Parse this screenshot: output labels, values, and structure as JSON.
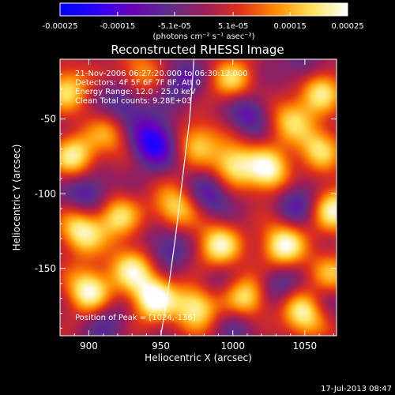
{
  "chart_data": {
    "type": "heatmap",
    "title": "Reconstructed RHESSI Image",
    "xlabel": "Heliocentric X (arcsec)",
    "ylabel": "Heliocentric Y (arcsec)",
    "xlim": [
      880,
      1072
    ],
    "ylim": [
      -195,
      -10
    ],
    "x_ticks": [
      "900",
      "950",
      "1000",
      "1050"
    ],
    "x_tick_values": [
      900,
      950,
      1000,
      1050
    ],
    "y_ticks": [
      "-50",
      "-100",
      "-150"
    ],
    "y_tick_values": [
      -50,
      -100,
      -150
    ],
    "colorbar": {
      "range": [
        -0.00025,
        0.00025
      ],
      "tick_labels": [
        "-0.00025",
        "-0.00015",
        "-5.1e-05",
        "5.1e-05",
        "0.00015",
        "0.00025"
      ],
      "tick_values": [
        -0.00025,
        -0.00015,
        -5.1e-05,
        5.1e-05,
        0.00015,
        0.00025
      ],
      "units": "(photons cm⁻² s⁻¹ asec⁻²)",
      "stops": [
        "#0000ff",
        "#2a00ff",
        "#6a00b8",
        "#5a2f8a",
        "#9a1e5a",
        "#e0301a",
        "#ff8c00",
        "#ffe25a",
        "#ffffff"
      ]
    },
    "info_lines": [
      "21-Nov-2006 06:27:20.000 to 06:30:12.000",
      "Detectors: 4F 5F 6F 7F 8F, Att 0",
      "Energy Range: 12.0 - 25.0 keV",
      "Clean      Total counts: 9.28E+03"
    ],
    "peak_label": "Position of Peak = [1024,-136]",
    "peak_position": [
      1024,
      -136
    ],
    "limb_curve": [
      [
        950,
        -195
      ],
      [
        955,
        -165
      ],
      [
        960,
        -130
      ],
      [
        965,
        -90
      ],
      [
        970,
        -50
      ],
      [
        973,
        -10
      ]
    ],
    "background_value": 5e-06,
    "sources": [
      [
        890,
        -75,
        0.0002
      ],
      [
        885,
        -30,
        0.00018
      ],
      [
        895,
        -125,
        0.00022
      ],
      [
        900,
        -165,
        0.00024
      ],
      [
        920,
        -115,
        0.00018
      ],
      [
        930,
        -150,
        0.00019
      ],
      [
        945,
        -170,
        0.00025
      ],
      [
        975,
        -175,
        0.00024
      ],
      [
        990,
        -135,
        0.00022
      ],
      [
        1000,
        -80,
        0.00021
      ],
      [
        1000,
        -25,
        0.00018
      ],
      [
        1025,
        -85,
        0.00023
      ],
      [
        1035,
        -135,
        0.00024
      ],
      [
        1050,
        -180,
        0.00024
      ],
      [
        1060,
        -30,
        0.00022
      ],
      [
        1060,
        -70,
        0.00018
      ],
      [
        1070,
        -110,
        0.00022
      ],
      [
        1010,
        -170,
        0.00023
      ],
      [
        960,
        -110,
        0.00019
      ],
      [
        975,
        -65,
        0.00016
      ],
      [
        915,
        -60,
        0.00013
      ],
      [
        935,
        -20,
        0.00014
      ],
      [
        1040,
        -50,
        0.00016
      ],
      [
        1068,
        -155,
        0.00016
      ],
      [
        965,
        -25,
        -0.0001
      ],
      [
        945,
        -65,
        -0.00022
      ],
      [
        900,
        -100,
        -0.00014
      ],
      [
        925,
        -40,
        -0.00013
      ],
      [
        985,
        -100,
        -0.00012
      ],
      [
        1045,
        -105,
        -0.00012
      ],
      [
        1030,
        -160,
        -0.00011
      ],
      [
        955,
        -135,
        -0.00012
      ],
      [
        1010,
        -45,
        -0.00013
      ],
      [
        1062,
        -170,
        -9e-05
      ],
      [
        1005,
        -185,
        -9e-05
      ],
      [
        912,
        -185,
        -8e-05
      ],
      [
        1050,
        -18,
        -0.00011
      ],
      [
        985,
        -160,
        -8e-05
      ]
    ]
  },
  "footer": {
    "date": "17-Jul-2013 08:47"
  }
}
